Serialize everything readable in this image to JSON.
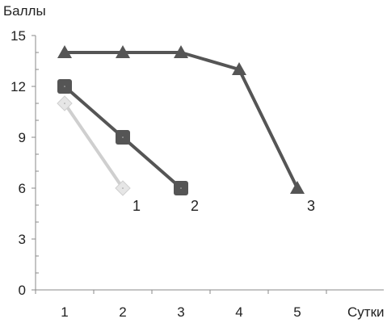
{
  "chart_data": {
    "type": "line",
    "ylabel": "Баллы",
    "xlabel": "Сутки",
    "x_ticks": [
      "1",
      "2",
      "3",
      "4",
      "5"
    ],
    "y_ticks": [
      "0",
      "3",
      "6",
      "9",
      "12",
      "15"
    ],
    "xlim": [
      0.5,
      6
    ],
    "ylim": [
      0,
      15
    ],
    "grid": false,
    "series": [
      {
        "name": "1",
        "marker": "diamond",
        "color": "#cfcfcf",
        "x": [
          1,
          2
        ],
        "y": [
          11,
          6
        ]
      },
      {
        "name": "2",
        "marker": "square",
        "color": "#555555",
        "x": [
          1,
          2,
          3
        ],
        "y": [
          12,
          9,
          6
        ]
      },
      {
        "name": "3",
        "marker": "triangle",
        "color": "#555555",
        "x": [
          1,
          2,
          3,
          4,
          5
        ],
        "y": [
          14,
          14,
          14,
          13,
          6
        ]
      }
    ]
  }
}
